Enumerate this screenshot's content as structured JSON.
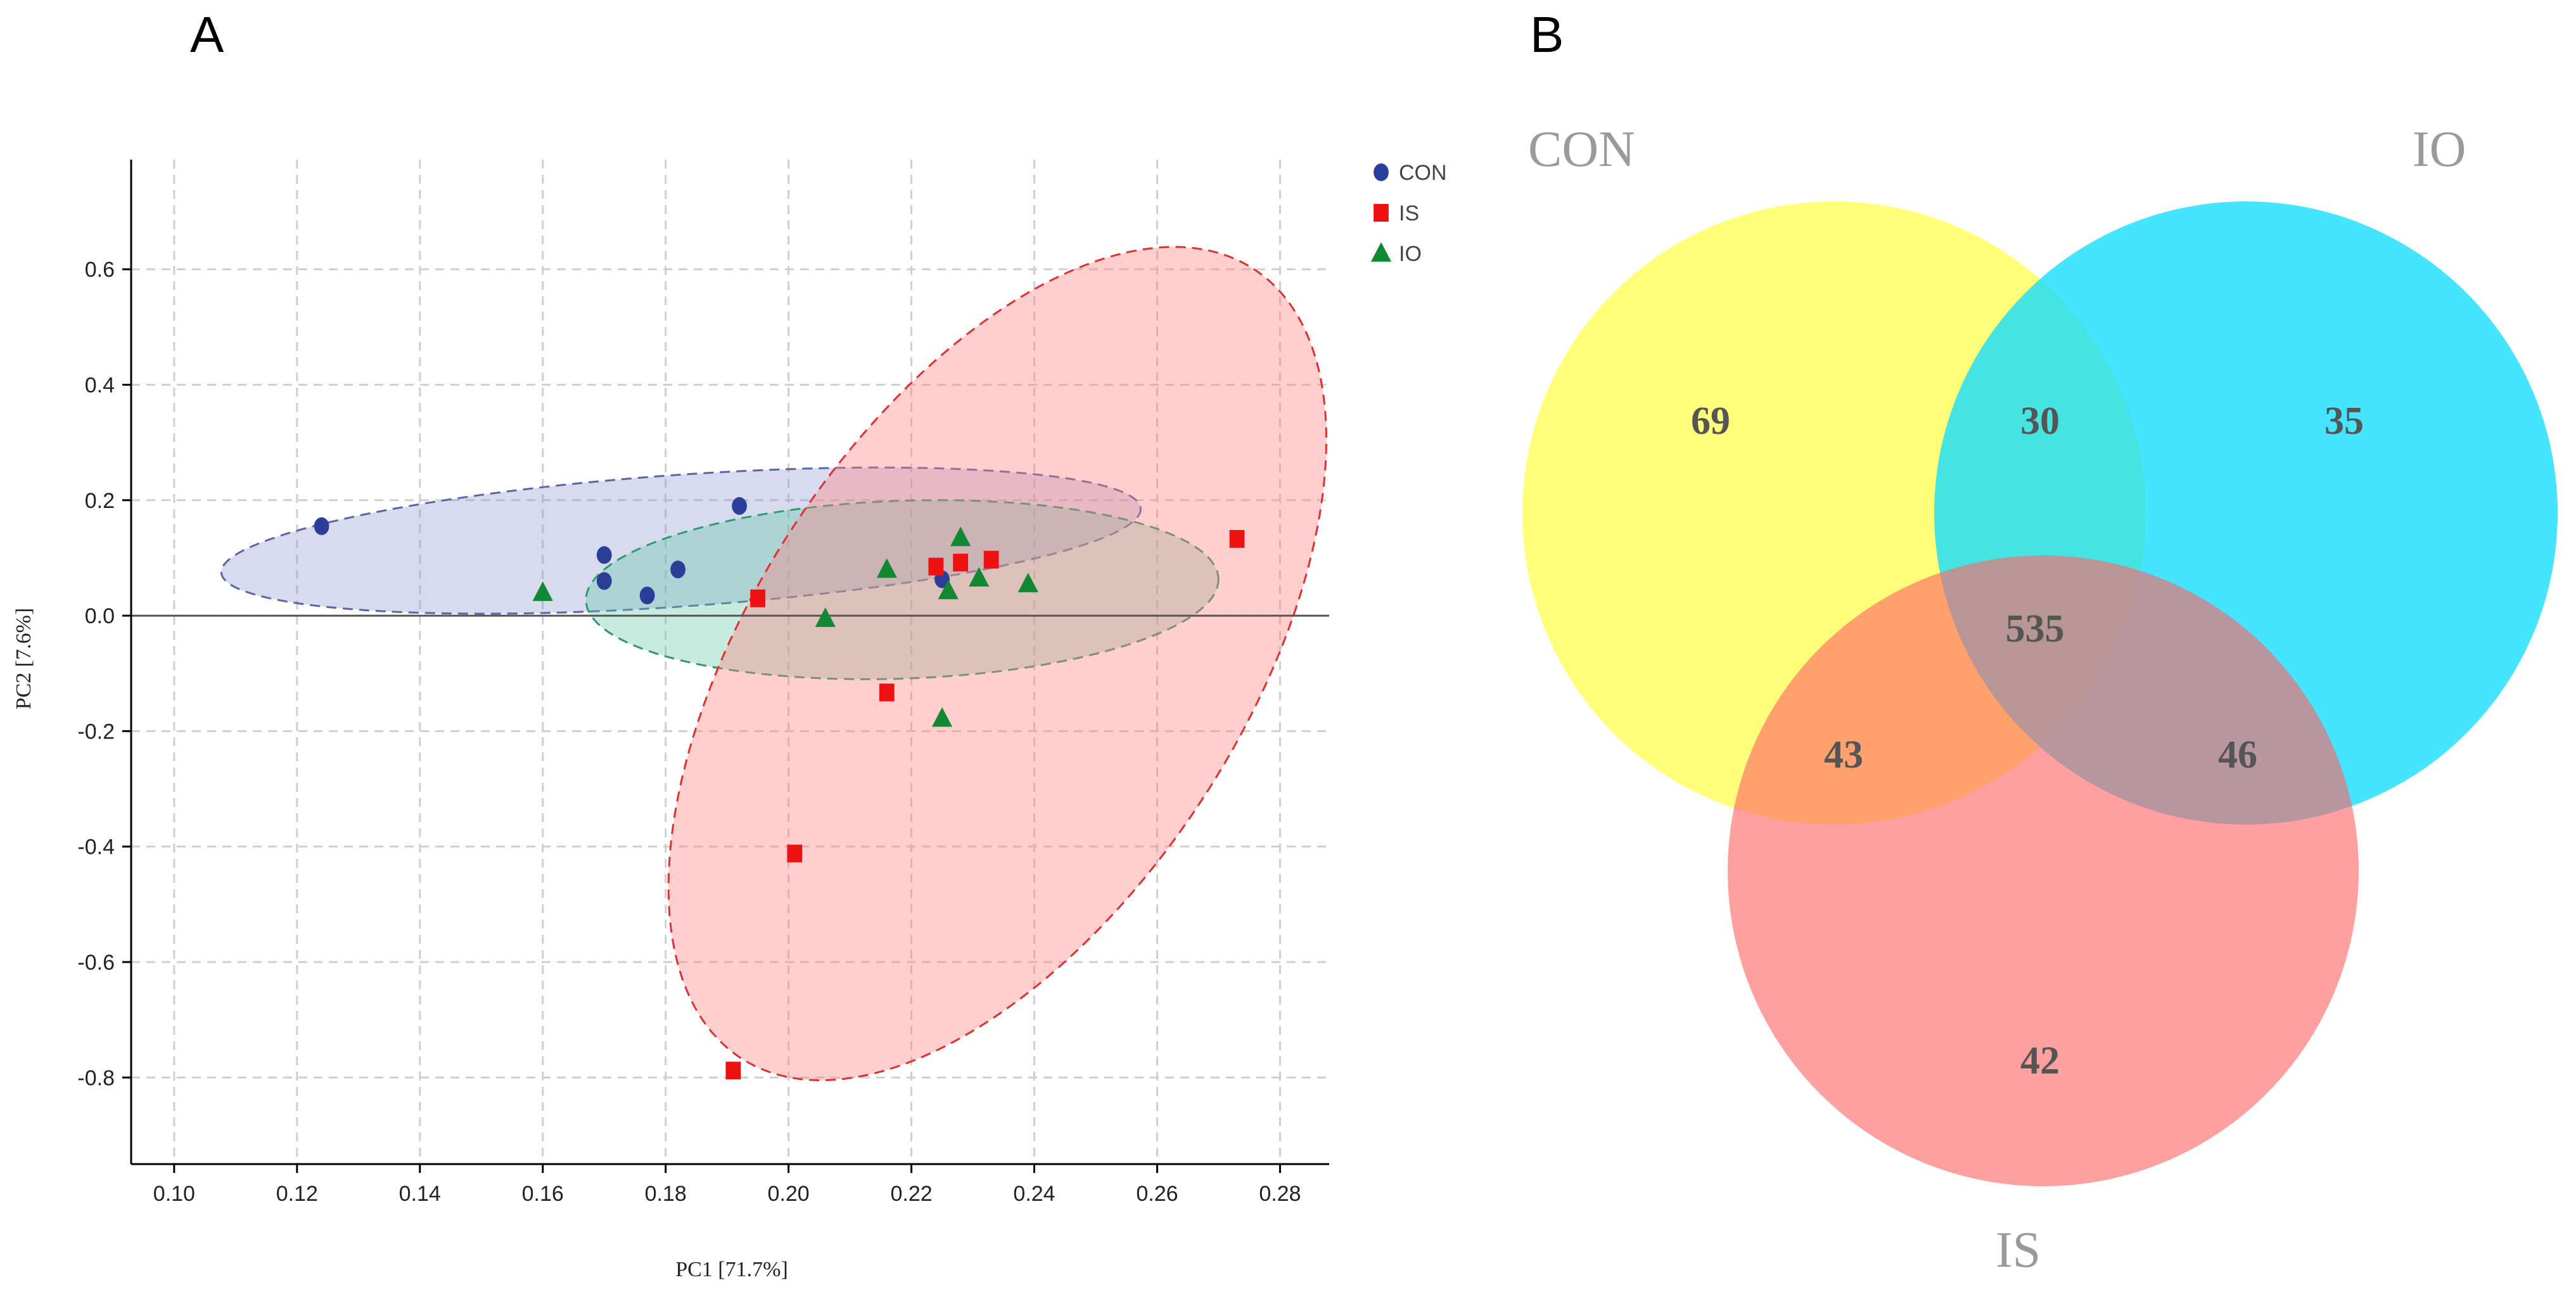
{
  "panels": {
    "a": "A",
    "b": "B"
  },
  "colors": {
    "CON": "#2b3f99",
    "IS": "#ee1111",
    "IO": "#118833",
    "venn_CON": "#ffff55",
    "venn_IO": "#11ddff",
    "venn_IS": "#ff6666"
  },
  "chart_data": [
    {
      "type": "scatter",
      "title": "A",
      "xlabel": "PC1 [71.7%]",
      "ylabel": "PC2 [7.6%]",
      "xlim": [
        0.093,
        0.288
      ],
      "ylim": [
        -0.95,
        0.79
      ],
      "xticks": [
        0.1,
        0.12,
        0.14,
        0.16,
        0.18,
        0.2,
        0.22,
        0.24,
        0.26,
        0.28
      ],
      "xtick_labels": [
        "0.10",
        "0.12",
        "0.14",
        "0.16",
        "0.18",
        "0.20",
        "0.22",
        "0.24",
        "0.26",
        "0.28"
      ],
      "yticks": [
        0.6,
        0.4,
        0.2,
        0.0,
        -0.2,
        -0.4,
        -0.6,
        -0.8
      ],
      "ytick_labels": [
        "0.6",
        "0.4",
        "0.2",
        "0.0",
        "-0.2",
        "-0.4",
        "-0.6",
        "-0.8"
      ],
      "grid": true,
      "legend_position": "top-right",
      "series": [
        {
          "name": "CON",
          "marker": "circle",
          "points": [
            [
              0.124,
              0.155
            ],
            [
              0.17,
              0.105
            ],
            [
              0.17,
              0.06
            ],
            [
              0.177,
              0.035
            ],
            [
              0.182,
              0.08
            ],
            [
              0.192,
              0.19
            ],
            [
              0.225,
              0.063
            ]
          ],
          "ellipse": {
            "center": [
              0.1825,
              0.13
            ],
            "semi_axis_x": 0.075,
            "semi_axis_y": 0.114,
            "rotation_deg": -4
          }
        },
        {
          "name": "IS",
          "marker": "square",
          "points": [
            [
              0.195,
              0.03
            ],
            [
              0.224,
              0.085
            ],
            [
              0.228,
              0.092
            ],
            [
              0.233,
              0.097
            ],
            [
              0.273,
              0.133
            ],
            [
              0.216,
              -0.133
            ],
            [
              0.201,
              -0.412
            ],
            [
              0.191,
              -0.788
            ]
          ],
          "ellipse": {
            "center": [
              0.234,
              -0.083
            ],
            "semi_axis_x": 0.04,
            "semi_axis_y": 0.815,
            "rotation_deg": 33
          }
        },
        {
          "name": "IO",
          "marker": "triangle",
          "points": [
            [
              0.16,
              0.04
            ],
            [
              0.206,
              -0.005
            ],
            [
              0.216,
              0.08
            ],
            [
              0.226,
              0.043
            ],
            [
              0.228,
              0.135
            ],
            [
              0.231,
              0.065
            ],
            [
              0.239,
              0.055
            ],
            [
              0.225,
              -0.178
            ]
          ],
          "ellipse": {
            "center": [
              0.2185,
              0.045
            ],
            "semi_axis_x": 0.0515,
            "semi_axis_y": 0.154,
            "rotation_deg": -2
          }
        }
      ]
    },
    {
      "type": "venn",
      "title": "B",
      "sets": [
        "CON",
        "IO",
        "IS"
      ],
      "regions": [
        {
          "sets": [
            "CON"
          ],
          "value": "69"
        },
        {
          "sets": [
            "CON",
            "IO"
          ],
          "value": "30"
        },
        {
          "sets": [
            "IO"
          ],
          "value": "35"
        },
        {
          "sets": [
            "CON",
            "IO",
            "IS"
          ],
          "value": "535"
        },
        {
          "sets": [
            "CON",
            "IS"
          ],
          "value": "43"
        },
        {
          "sets": [
            "IO",
            "IS"
          ],
          "value": "46"
        },
        {
          "sets": [
            "IS"
          ],
          "value": "42"
        }
      ]
    }
  ]
}
